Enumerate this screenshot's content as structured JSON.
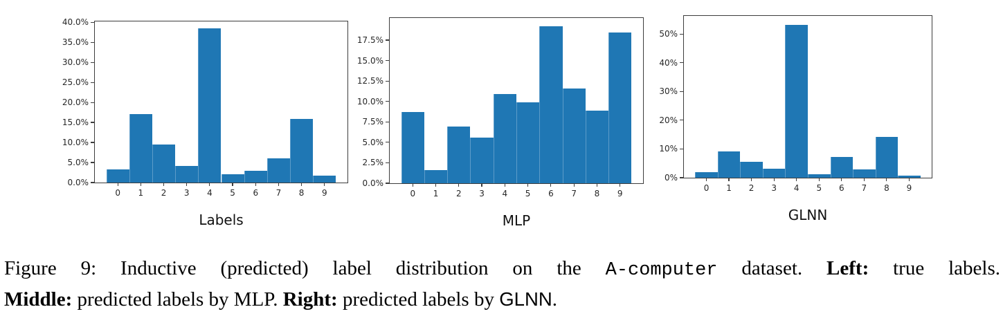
{
  "figure": {
    "caption": {
      "line1": [
        {
          "text": "Figure 9: Inductive (predicted) label distribution on the "
        },
        {
          "text": "A-computer"
        },
        {
          "text": " dataset. "
        },
        {
          "text": "Left:"
        },
        {
          "text": " true labels."
        }
      ],
      "line2": [
        {
          "text": "Middle:"
        },
        {
          "text": " predicted labels by MLP. "
        },
        {
          "text": "Right:"
        },
        {
          "text": " predicted labels by "
        },
        {
          "text": "GLNN"
        },
        {
          "text": "."
        }
      ]
    }
  },
  "chart_data": [
    {
      "type": "bar",
      "title": "Labels",
      "categories": [
        "0",
        "1",
        "2",
        "3",
        "4",
        "5",
        "6",
        "7",
        "8",
        "9"
      ],
      "values": [
        3.2,
        17.0,
        9.5,
        4.2,
        38.4,
        2.0,
        3.0,
        6.0,
        15.8,
        1.7
      ],
      "unit": "%",
      "xlabel": "",
      "ylabel": "",
      "ylim": [
        0,
        40.2
      ],
      "yticks": [
        0,
        5,
        10,
        15,
        20,
        25,
        30,
        35,
        40
      ],
      "ytick_labels": [
        "0.0%",
        "5.0%",
        "10.0%",
        "15.0%",
        "20.0%",
        "25.0%",
        "30.0%",
        "35.0%",
        "40.0%"
      ],
      "grid": false,
      "legend": "none",
      "bar_color": "#1f77b4"
    },
    {
      "type": "bar",
      "title": "MLP",
      "categories": [
        "0",
        "1",
        "2",
        "3",
        "4",
        "5",
        "6",
        "7",
        "8",
        "9"
      ],
      "values": [
        8.7,
        1.6,
        6.9,
        5.6,
        10.9,
        9.9,
        19.2,
        11.6,
        8.9,
        18.4
      ],
      "unit": "%",
      "xlabel": "",
      "ylabel": "",
      "ylim": [
        0,
        20.2
      ],
      "yticks": [
        0,
        2.5,
        5,
        7.5,
        10,
        12.5,
        15,
        17.5
      ],
      "ytick_labels": [
        "0.0%",
        "2.5%",
        "5.0%",
        "7.5%",
        "10.0%",
        "12.5%",
        "15.0%",
        "17.5%"
      ],
      "grid": false,
      "legend": "none",
      "bar_color": "#1f77b4"
    },
    {
      "type": "bar",
      "title": "GLNN",
      "categories": [
        "0",
        "1",
        "2",
        "3",
        "4",
        "5",
        "6",
        "7",
        "8",
        "9"
      ],
      "values": [
        2.0,
        9.1,
        5.6,
        3.2,
        53.2,
        1.2,
        7.3,
        2.8,
        14.3,
        0.7
      ],
      "unit": "%",
      "xlabel": "",
      "ylabel": "",
      "ylim": [
        0,
        56.3
      ],
      "yticks": [
        0,
        10,
        20,
        30,
        40,
        50
      ],
      "ytick_labels": [
        "0%",
        "10%",
        "20%",
        "30%",
        "40%",
        "50%"
      ],
      "grid": false,
      "legend": "none",
      "bar_color": "#1f77b4"
    }
  ]
}
